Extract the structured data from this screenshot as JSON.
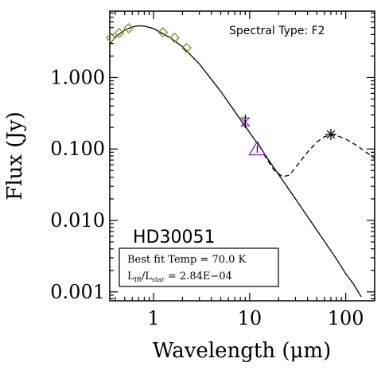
{
  "chart_data": {
    "type": "scatter",
    "title": "",
    "xlabel": "Wavelength (μm)",
    "ylabel": "Flux (Jy)",
    "xscale": "log",
    "yscale": "log",
    "xlim": [
      0.35,
      200
    ],
    "ylim": [
      0.00075,
      8.5
    ],
    "x_tick_labels": [
      {
        "value": 1,
        "label": "1"
      },
      {
        "value": 10,
        "label": "10"
      },
      {
        "value": 100,
        "label": "100"
      }
    ],
    "y_tick_labels": [
      {
        "value": 1,
        "label": "1.000"
      },
      {
        "value": 0.1,
        "label": "0.100"
      },
      {
        "value": 0.01,
        "label": "0.010"
      },
      {
        "value": 0.001,
        "label": "0.001"
      }
    ],
    "annotations": {
      "spectral_type": "Spectral Type: F2",
      "star_name": "HD30051",
      "fit_temp": "Best fit Temp = 70.0 K",
      "ratio_prefix": "L",
      "ratio_sub1": "IR",
      "ratio_mid": "/L",
      "ratio_sub2": "star",
      "ratio_value": " = 2.84E−04"
    },
    "series": [
      {
        "marker": "diamond",
        "color": "#7a9a2c",
        "points": [
          [
            0.36,
            3.6
          ],
          [
            0.44,
            4.2
          ],
          [
            0.55,
            4.9
          ],
          [
            1.25,
            4.3
          ],
          [
            1.65,
            3.6
          ],
          [
            2.2,
            2.6
          ]
        ]
      },
      {
        "marker": "hourglass",
        "color": "#8b2fb0",
        "points": [
          [
            9.0,
            0.24
          ]
        ]
      },
      {
        "marker": "triangle",
        "color": "#8b2fb0",
        "points": [
          [
            12.0,
            0.098
          ]
        ]
      },
      {
        "marker": "asterisk",
        "color": "#000000",
        "points": [
          [
            70.0,
            0.16
          ]
        ]
      }
    ],
    "lines": [
      {
        "style": "solid",
        "color": "#000000",
        "points": [
          [
            0.35,
            2.9
          ],
          [
            0.4,
            3.7
          ],
          [
            0.5,
            4.6
          ],
          [
            0.6,
            5.1
          ],
          [
            0.7,
            5.3
          ],
          [
            0.8,
            5.25
          ],
          [
            1.0,
            4.85
          ],
          [
            1.5,
            3.6
          ],
          [
            2.0,
            2.7
          ],
          [
            3.0,
            1.55
          ],
          [
            5.0,
            0.64
          ],
          [
            8.0,
            0.26
          ],
          [
            12.0,
            0.12
          ],
          [
            20.0,
            0.044
          ],
          [
            30.0,
            0.02
          ],
          [
            50.0,
            0.0073
          ],
          [
            80.0,
            0.0029
          ],
          [
            100.0,
            0.0018
          ],
          [
            120.0,
            0.0013
          ],
          [
            145.0,
            0.00085
          ]
        ]
      },
      {
        "style": "dashed",
        "color": "#000000",
        "points": [
          [
            14.0,
            0.085
          ],
          [
            18.0,
            0.05
          ],
          [
            22.0,
            0.041
          ],
          [
            26.0,
            0.043
          ],
          [
            30.0,
            0.055
          ],
          [
            40.0,
            0.09
          ],
          [
            50.0,
            0.125
          ],
          [
            60.0,
            0.148
          ],
          [
            70.0,
            0.158
          ],
          [
            80.0,
            0.155
          ],
          [
            100.0,
            0.138
          ],
          [
            130.0,
            0.112
          ],
          [
            160.0,
            0.092
          ],
          [
            200.0,
            0.074
          ]
        ]
      }
    ],
    "grid": false,
    "legend": "none"
  }
}
